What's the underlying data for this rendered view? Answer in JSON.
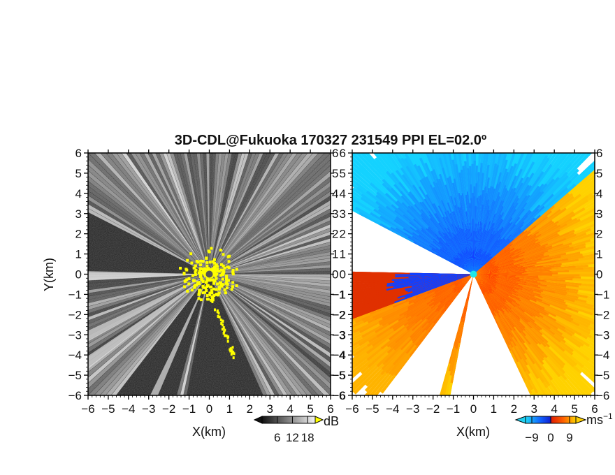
{
  "chart_data": [
    {
      "type": "heatmap",
      "title": "3D-CDL@Fukuoka 170327 231549 PPI EL=02.0º",
      "xlabel": "X(km)",
      "ylabel": "Y(km)",
      "xlim": [
        -6,
        6
      ],
      "ylim": [
        -6,
        6
      ],
      "xticks": [
        "−6",
        "−5",
        "−4",
        "−3",
        "−2",
        "−1",
        "0",
        "1",
        "2",
        "3",
        "4",
        "5",
        "6"
      ],
      "yticks": [
        "6",
        "5",
        "4",
        "3",
        "2",
        "1",
        "0",
        "−1",
        "−2",
        "−3",
        "−4",
        "−5",
        "−6"
      ],
      "colorbar": {
        "label": "dB",
        "ticks": [
          "6",
          "12",
          "18"
        ],
        "values": [
          6,
          12,
          18
        ],
        "range": [
          0,
          21
        ]
      },
      "colors": {
        "low": "#111111",
        "high": "#ffffff",
        "clutter": "#ffff00",
        "radar_site": "#555555"
      }
    },
    {
      "type": "heatmap",
      "xlabel": "X(km)",
      "xlim": [
        -6,
        6
      ],
      "ylim": [
        -6,
        6
      ],
      "xticks": [
        "−6",
        "−5",
        "−4",
        "−3",
        "−2",
        "−1",
        "0",
        "1",
        "2",
        "3",
        "4",
        "5",
        "6"
      ],
      "yticks": [
        "6",
        "5",
        "4",
        "3",
        "2",
        "1",
        "0",
        "−1",
        "−2",
        "−3",
        "−4",
        "−5",
        "−6"
      ],
      "colorbar": {
        "label": "ms",
        "label_sup": "−1",
        "ticks": [
          "−9",
          "0",
          "9"
        ],
        "values": [
          -9,
          0,
          9
        ],
        "range": [
          -12,
          12
        ]
      },
      "colors": {
        "negative_far": "#20d0f0",
        "negative": "#0030ff",
        "positive": "#ff3000",
        "positive_far": "#ffd000",
        "radar_site": "#20e8e8"
      }
    }
  ]
}
